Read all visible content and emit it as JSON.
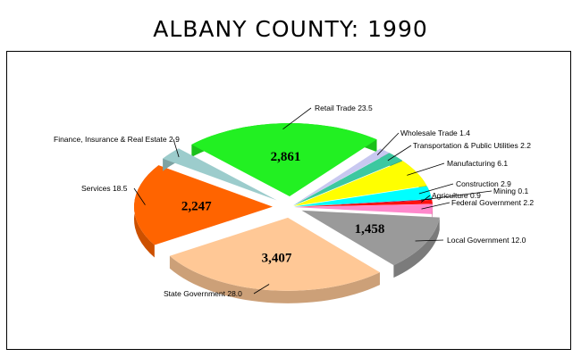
{
  "chart_data": {
    "type": "pie",
    "title": "ALBANY COUNTY:  1990",
    "slices": [
      {
        "name": "Retail Trade",
        "percent": "23.5",
        "value": "2,861",
        "color": "#22f022",
        "label": "Retail Trade 23.5"
      },
      {
        "name": "Wholesale Trade",
        "percent": "1.4",
        "value": "",
        "color": "#c8c8f0",
        "label": "Wholesale Trade 1.4"
      },
      {
        "name": "Transportation & Public Utilities",
        "percent": "2.2",
        "value": "",
        "color": "#3cc8a0",
        "label": "Transportation & Public Utilities 2.2"
      },
      {
        "name": "Manufacturing",
        "percent": "6.1",
        "value": "",
        "color": "#ffff00",
        "label": "Manufacturing 6.1"
      },
      {
        "name": "Construction",
        "percent": "2.9",
        "value": "",
        "color": "#00ffff",
        "label": "Construction 2.9"
      },
      {
        "name": "Mining",
        "percent": "0.1",
        "value": "",
        "color": "#000080",
        "label": "Mining 0.1"
      },
      {
        "name": "Agriculture",
        "percent": "0.9",
        "value": "",
        "color": "#ff1010",
        "label": "Agriculture 0.9"
      },
      {
        "name": "Federal Government",
        "percent": "2.2",
        "value": "",
        "color": "#ff88cc",
        "label": "Federal Government 2.2"
      },
      {
        "name": "Local Government",
        "percent": "12.0",
        "value": "1,458",
        "color": "#9a9a9a",
        "label": "Local Government 12.0"
      },
      {
        "name": "State Government",
        "percent": "28.0",
        "value": "3,407",
        "color": "#ffc896",
        "label": "State Government 28.0"
      },
      {
        "name": "Services",
        "percent": "18.5",
        "value": "2,247",
        "color": "#ff6400",
        "label": "Services 18.5"
      },
      {
        "name": "Finance, Insurance & Real Estate",
        "percent": "2.9",
        "value": "",
        "color": "#9ccccc",
        "label": "Finance, Insurance & Real Estate 2.9"
      }
    ]
  }
}
